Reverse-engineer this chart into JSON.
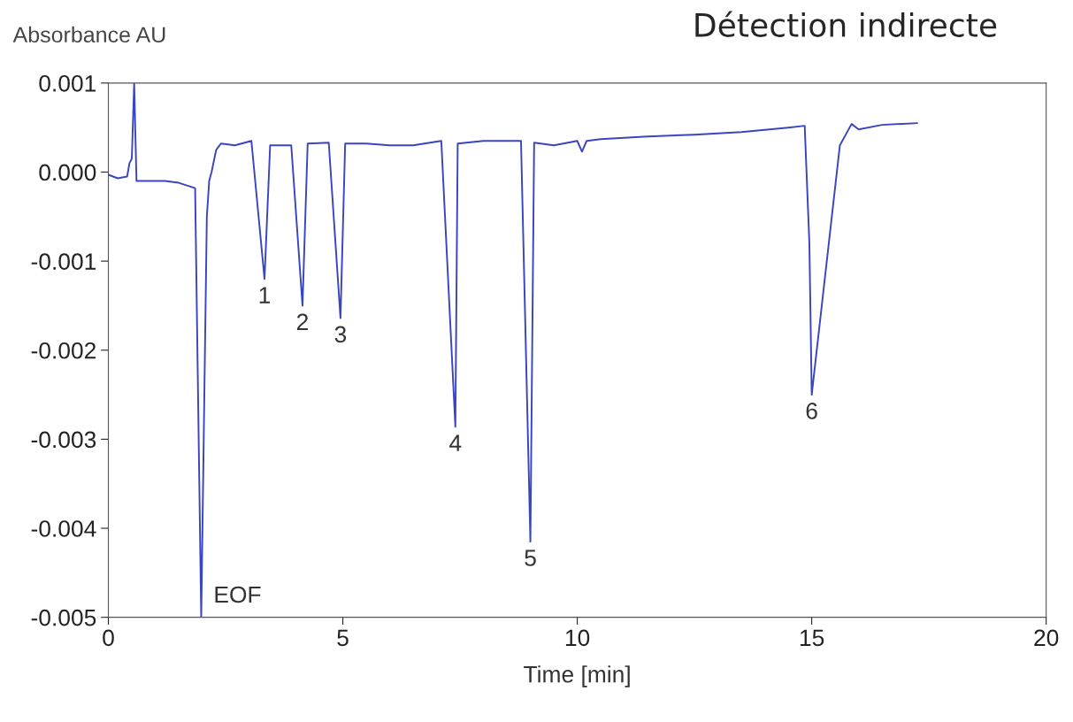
{
  "chart_data": {
    "type": "line",
    "title": "Détection indirecte",
    "ylabel": "Absorbance AU",
    "xlabel": "Time [min]",
    "xlim": [
      0,
      20
    ],
    "xticks": [
      0,
      5,
      10,
      15,
      20
    ],
    "ylim": [
      -0.005,
      0.001
    ],
    "yticks": [
      {
        "value": -0.005,
        "label": "-0.005"
      },
      {
        "value": -0.004,
        "label": "-0.004"
      },
      {
        "value": -0.003,
        "label": "-0.003"
      },
      {
        "value": -0.002,
        "label": "-0.002"
      },
      {
        "value": -0.001,
        "label": "-0.001"
      },
      {
        "value": 0,
        "label": "0.000"
      },
      {
        "value": 0.001,
        "label": "0.001"
      }
    ],
    "grid": false,
    "marker": "none",
    "line_style": "solid",
    "series": [
      {
        "color": "#3a45c0",
        "x": [
          0,
          0.2,
          0.4,
          0.45,
          0.5,
          0.55,
          0.6,
          0.9,
          1.2,
          1.5,
          1.85,
          1.98,
          2.1,
          2.15,
          2.2,
          2.3,
          2.4,
          2.7,
          3.05,
          3.33,
          3.45,
          3.9,
          4.14,
          4.25,
          4.7,
          4.95,
          5.05,
          5.5,
          6.0,
          6.3,
          6.5,
          7.1,
          7.4,
          7.45,
          8.0,
          8.8,
          9.0,
          9.08,
          9.5,
          10.0,
          10.1,
          10.2,
          10.5,
          11.5,
          12.5,
          13.5,
          14.5,
          14.85,
          14.95,
          15.0,
          15.6,
          15.85,
          16.0,
          16.5,
          17.25
        ],
        "values": [
          -3e-05,
          -7e-05,
          -5e-05,
          0.0001,
          0.00015,
          0.001,
          -0.0001,
          -0.0001,
          -0.0001,
          -0.00012,
          -0.00018,
          -0.005,
          -0.0005,
          -0.0001,
          0.0,
          0.00025,
          0.00032,
          0.0003,
          0.00035,
          -0.0012,
          0.0003,
          0.0003,
          -0.0015,
          0.00032,
          0.00033,
          -0.00164,
          0.00032,
          0.00032,
          0.0003,
          0.0003,
          0.0003,
          0.00035,
          -0.00286,
          0.00032,
          0.00035,
          0.00035,
          -0.00415,
          0.00033,
          0.0003,
          0.00035,
          0.00023,
          0.00035,
          0.00037,
          0.0004,
          0.00042,
          0.00045,
          0.0005,
          0.00052,
          -0.0008,
          -0.0025,
          0.0003,
          0.00054,
          0.00048,
          0.00053,
          0.00055
        ]
      }
    ],
    "annotations": [
      {
        "text": "1",
        "x": 3.33,
        "y": -0.0012
      },
      {
        "text": "2",
        "x": 4.14,
        "y": -0.0015
      },
      {
        "text": "3",
        "x": 4.95,
        "y": -0.00164
      },
      {
        "text": "4",
        "x": 7.4,
        "y": -0.00286
      },
      {
        "text": "5",
        "x": 9.0,
        "y": -0.00415
      },
      {
        "text": "6",
        "x": 15.0,
        "y": -0.0025
      },
      {
        "text": "EOF",
        "x": 1.98,
        "y": -0.005
      }
    ]
  }
}
